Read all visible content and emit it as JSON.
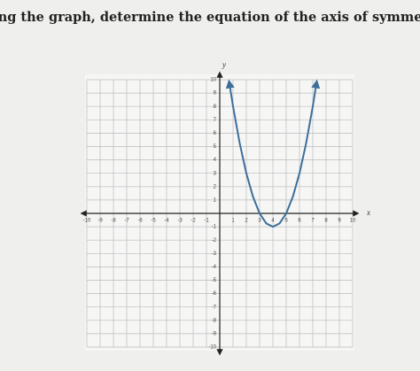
{
  "chart_data": {
    "type": "line",
    "title": "Using the graph, determine the equation of the axis of symmetry.",
    "x_label": "x",
    "y_label": "y",
    "series": [
      {
        "name": "parabola",
        "color": "#3d6f9a",
        "x": [
          0.7,
          1,
          1.5,
          2,
          2.5,
          3,
          3.5,
          4,
          4.5,
          5,
          5.5,
          6,
          6.5,
          7,
          7.3
        ],
        "values": [
          9.89,
          8,
          5.25,
          3,
          1.25,
          0,
          -0.75,
          -1,
          -0.75,
          0,
          1.25,
          3,
          5.25,
          8,
          9.89
        ]
      }
    ],
    "xlim": [
      -10,
      10
    ],
    "ylim": [
      -10,
      10
    ],
    "xticks": [
      -10,
      -9,
      -8,
      -7,
      -6,
      -5,
      -4,
      -3,
      -2,
      -1,
      1,
      2,
      3,
      4,
      5,
      6,
      7,
      8,
      9,
      10
    ],
    "yticks": [
      -10,
      -9,
      -8,
      -7,
      -6,
      -5,
      -4,
      -3,
      -2,
      -1,
      1,
      2,
      3,
      4,
      5,
      6,
      7,
      8,
      9,
      10
    ],
    "grid": true
  }
}
